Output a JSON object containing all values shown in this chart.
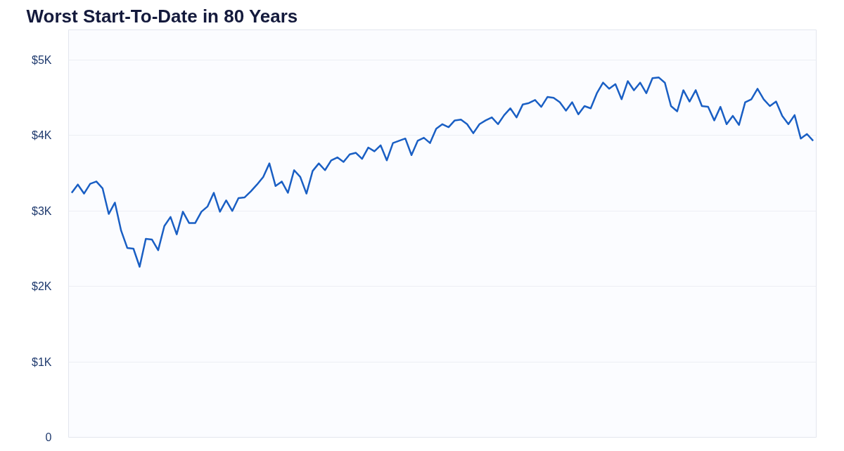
{
  "chart_data": {
    "type": "line",
    "title": "Worst Start-To-Date in 80 Years",
    "categories": [
      null,
      null,
      null,
      null,
      null,
      null,
      null,
      null,
      null,
      null,
      null,
      null,
      null,
      null,
      null,
      null,
      null,
      null,
      null,
      null,
      null,
      null,
      null,
      null,
      null,
      null,
      null,
      null,
      null,
      null,
      null,
      null,
      null,
      null,
      null,
      null,
      null,
      null,
      null,
      null,
      null,
      null,
      null,
      null,
      null,
      null,
      null,
      null,
      null,
      null,
      null,
      null,
      null,
      null,
      null,
      null,
      null,
      null,
      null,
      null,
      null,
      null,
      null,
      null,
      null,
      null,
      null,
      null,
      null,
      null,
      null,
      null,
      null,
      null,
      null,
      null,
      null,
      null,
      null,
      null,
      null,
      null,
      null,
      null,
      null,
      null,
      null,
      null,
      null,
      null,
      null,
      null,
      null,
      null,
      null,
      null,
      null,
      null,
      null,
      null,
      null,
      null,
      null,
      null,
      null,
      null,
      null,
      null,
      null,
      null,
      null,
      null,
      null,
      null,
      null,
      null,
      null,
      null,
      null,
      null,
      null
    ],
    "series": [
      {
        "color": "#1a5fc4",
        "values": [
          3240,
          3350,
          3230,
          3360,
          3390,
          3300,
          2960,
          3110,
          2740,
          2510,
          2500,
          2260,
          2630,
          2620,
          2480,
          2800,
          2920,
          2690,
          2990,
          2840,
          2840,
          2990,
          3060,
          3240,
          2990,
          3140,
          3000,
          3170,
          3180,
          3260,
          3350,
          3450,
          3630,
          3330,
          3390,
          3240,
          3540,
          3450,
          3230,
          3530,
          3630,
          3540,
          3670,
          3710,
          3650,
          3750,
          3770,
          3690,
          3840,
          3790,
          3870,
          3670,
          3900,
          3930,
          3960,
          3740,
          3930,
          3970,
          3900,
          4090,
          4150,
          4110,
          4200,
          4210,
          4150,
          4030,
          4150,
          4200,
          4240,
          4150,
          4270,
          4360,
          4240,
          4410,
          4430,
          4470,
          4380,
          4510,
          4500,
          4440,
          4330,
          4440,
          4280,
          4390,
          4360,
          4560,
          4700,
          4620,
          4680,
          4480,
          4720,
          4600,
          4700,
          4560,
          4760,
          4770,
          4700,
          4390,
          4320,
          4600,
          4450,
          4600,
          4390,
          4380,
          4200,
          4380,
          4150,
          4260,
          4140,
          4440,
          4480,
          4620,
          4480,
          4390,
          4450,
          4260,
          4150,
          4270,
          3960,
          4020,
          3930
        ]
      }
    ],
    "ylim": [
      0,
      5400
    ],
    "yticks": [
      {
        "value": 0,
        "label": "0"
      },
      {
        "value": 1000,
        "label": "$1K"
      },
      {
        "value": 2000,
        "label": "$2K"
      },
      {
        "value": 3000,
        "label": "$3K"
      },
      {
        "value": 4000,
        "label": "$4K"
      },
      {
        "value": 5000,
        "label": "$5K"
      }
    ],
    "grid": "y",
    "marker": "none",
    "line_style": "solid"
  }
}
